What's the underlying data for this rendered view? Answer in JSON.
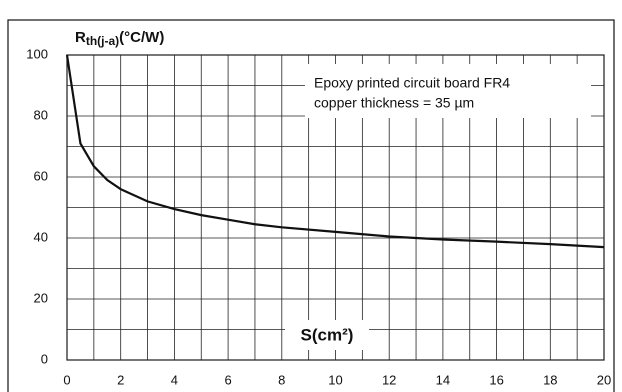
{
  "chart_data": {
    "type": "line",
    "y_label": {
      "main": "R",
      "sub": "th(j-a)",
      "unit": "(°C/W)"
    },
    "x_label": "S(cm²)",
    "annotation": [
      "Epoxy printed circuit board FR4",
      "copper thickness = 35 µm"
    ],
    "x": [
      0,
      0.5,
      1,
      1.5,
      2,
      3,
      4,
      5,
      6,
      7,
      8,
      10,
      12,
      14,
      16,
      18,
      20
    ],
    "series": [
      {
        "color": "#111111",
        "values": [
          100,
          71,
          63.5,
          59,
          56,
          52,
          49.5,
          47.5,
          46,
          44.5,
          43.5,
          42,
          40.5,
          39.5,
          38.8,
          38,
          37
        ]
      }
    ],
    "xlim": [
      0,
      20
    ],
    "xticks": [
      0,
      2,
      4,
      6,
      8,
      10,
      12,
      14,
      16,
      18,
      20
    ],
    "ylim": [
      0,
      100
    ],
    "yticks": [
      0,
      20,
      40,
      60,
      80,
      100
    ],
    "grid": true,
    "minor_grid": true
  }
}
